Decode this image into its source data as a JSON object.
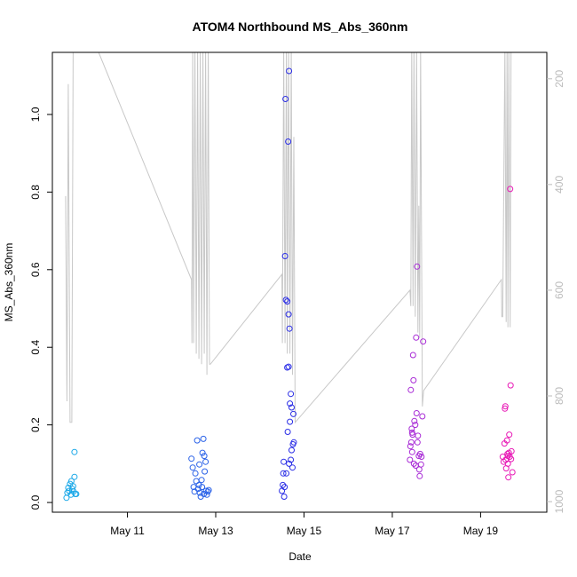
{
  "chart_data": {
    "type": "scatter",
    "title": "ATOM4 Northbound MS_Abs_360nm",
    "xlabel": "Date",
    "ylabel": "MS_Abs_360nm",
    "x_unit": "day of May",
    "xlim": [
      9.3,
      20.5
    ],
    "ylim": [
      -0.025,
      1.16
    ],
    "x_ticks": [
      11,
      13,
      15,
      17,
      19
    ],
    "x_tick_labels": [
      "May 11",
      "May 13",
      "May 15",
      "May 17",
      "May 19"
    ],
    "y_ticks": [
      0.0,
      0.2,
      0.4,
      0.6,
      0.8,
      1.0
    ],
    "y_tick_labels": [
      "0.0",
      "0.2",
      "0.4",
      "0.6",
      "0.8",
      "1.0"
    ],
    "y2_ticks": [
      200,
      400,
      600,
      800,
      1000
    ],
    "y2_tick_labels": [
      "200",
      "400",
      "600",
      "800",
      "1000"
    ],
    "y2_lim": [
      1020,
      150
    ],
    "grid": false,
    "points": [
      {
        "x": 9.62,
        "y": 0.012,
        "color": "#1aa8e8"
      },
      {
        "x": 9.64,
        "y": 0.025,
        "color": "#1aa8e8"
      },
      {
        "x": 9.66,
        "y": 0.038,
        "color": "#1aa8e8"
      },
      {
        "x": 9.68,
        "y": 0.03,
        "color": "#1aa8e8"
      },
      {
        "x": 9.7,
        "y": 0.048,
        "color": "#1aa8e8"
      },
      {
        "x": 9.72,
        "y": 0.02,
        "color": "#1aa8e8"
      },
      {
        "x": 9.73,
        "y": 0.055,
        "color": "#1aa8e8"
      },
      {
        "x": 9.75,
        "y": 0.035,
        "color": "#1aa8e8"
      },
      {
        "x": 9.77,
        "y": 0.042,
        "color": "#1aa8e8"
      },
      {
        "x": 9.78,
        "y": 0.028,
        "color": "#1aa8e8"
      },
      {
        "x": 9.8,
        "y": 0.066,
        "color": "#1aa8e8"
      },
      {
        "x": 9.8,
        "y": 0.13,
        "color": "#1aa8e8"
      },
      {
        "x": 9.82,
        "y": 0.022,
        "color": "#1aa8e8"
      },
      {
        "x": 9.84,
        "y": 0.022,
        "color": "#1aa8e8"
      },
      {
        "x": 12.45,
        "y": 0.113,
        "color": "#2a62e8"
      },
      {
        "x": 12.48,
        "y": 0.09,
        "color": "#2a62e8"
      },
      {
        "x": 12.5,
        "y": 0.04,
        "color": "#2a62e8"
      },
      {
        "x": 12.52,
        "y": 0.028,
        "color": "#2a62e8"
      },
      {
        "x": 12.54,
        "y": 0.075,
        "color": "#2a62e8"
      },
      {
        "x": 12.56,
        "y": 0.055,
        "color": "#2a62e8"
      },
      {
        "x": 12.58,
        "y": 0.16,
        "color": "#2a62e8"
      },
      {
        "x": 12.6,
        "y": 0.035,
        "color": "#2a62e8"
      },
      {
        "x": 12.62,
        "y": 0.045,
        "color": "#2a62e8"
      },
      {
        "x": 12.63,
        "y": 0.098,
        "color": "#2a62e8"
      },
      {
        "x": 12.64,
        "y": 0.025,
        "color": "#2a62e8"
      },
      {
        "x": 12.66,
        "y": 0.015,
        "color": "#2a62e8"
      },
      {
        "x": 12.68,
        "y": 0.058,
        "color": "#2a62e8"
      },
      {
        "x": 12.7,
        "y": 0.128,
        "color": "#2a62e8"
      },
      {
        "x": 12.72,
        "y": 0.164,
        "color": "#2a62e8"
      },
      {
        "x": 12.73,
        "y": 0.022,
        "color": "#2a62e8"
      },
      {
        "x": 12.74,
        "y": 0.12,
        "color": "#2a62e8"
      },
      {
        "x": 12.75,
        "y": 0.08,
        "color": "#2a62e8"
      },
      {
        "x": 12.77,
        "y": 0.105,
        "color": "#2a62e8"
      },
      {
        "x": 12.78,
        "y": 0.03,
        "color": "#2a62e8"
      },
      {
        "x": 12.8,
        "y": 0.02,
        "color": "#2a62e8"
      },
      {
        "x": 12.82,
        "y": 0.028,
        "color": "#2a62e8"
      },
      {
        "x": 12.84,
        "y": 0.032,
        "color": "#2a62e8"
      },
      {
        "x": 12.69,
        "y": 0.04,
        "color": "#2a62e8"
      },
      {
        "x": 14.5,
        "y": 0.03,
        "color": "#2b2ee6"
      },
      {
        "x": 14.52,
        "y": 0.045,
        "color": "#2b2ee6"
      },
      {
        "x": 14.53,
        "y": 0.075,
        "color": "#2b2ee6"
      },
      {
        "x": 14.54,
        "y": 0.105,
        "color": "#2b2ee6"
      },
      {
        "x": 14.55,
        "y": 0.015,
        "color": "#2b2ee6"
      },
      {
        "x": 14.56,
        "y": 0.04,
        "color": "#2b2ee6"
      },
      {
        "x": 14.57,
        "y": 0.635,
        "color": "#2b2ee6"
      },
      {
        "x": 14.58,
        "y": 1.04,
        "color": "#2b2ee6"
      },
      {
        "x": 14.59,
        "y": 0.522,
        "color": "#2b2ee6"
      },
      {
        "x": 14.6,
        "y": 0.075,
        "color": "#2b2ee6"
      },
      {
        "x": 14.62,
        "y": 0.518,
        "color": "#2b2ee6"
      },
      {
        "x": 14.62,
        "y": 0.348,
        "color": "#2b2ee6"
      },
      {
        "x": 14.64,
        "y": 0.93,
        "color": "#2b2ee6"
      },
      {
        "x": 14.65,
        "y": 0.35,
        "color": "#2b2ee6"
      },
      {
        "x": 14.65,
        "y": 0.485,
        "color": "#2b2ee6"
      },
      {
        "x": 14.66,
        "y": 1.112,
        "color": "#2b2ee6"
      },
      {
        "x": 14.67,
        "y": 0.448,
        "color": "#2b2ee6"
      },
      {
        "x": 14.63,
        "y": 0.182,
        "color": "#2b2ee6"
      },
      {
        "x": 14.68,
        "y": 0.255,
        "color": "#2b2ee6"
      },
      {
        "x": 14.68,
        "y": 0.208,
        "color": "#2b2ee6"
      },
      {
        "x": 14.7,
        "y": 0.28,
        "color": "#2b2ee6"
      },
      {
        "x": 14.7,
        "y": 0.11,
        "color": "#2b2ee6"
      },
      {
        "x": 14.72,
        "y": 0.245,
        "color": "#2b2ee6"
      },
      {
        "x": 14.72,
        "y": 0.135,
        "color": "#2b2ee6"
      },
      {
        "x": 14.74,
        "y": 0.09,
        "color": "#2b2ee6"
      },
      {
        "x": 14.75,
        "y": 0.15,
        "color": "#2b2ee6"
      },
      {
        "x": 14.76,
        "y": 0.228,
        "color": "#2b2ee6"
      },
      {
        "x": 14.77,
        "y": 0.155,
        "color": "#2b2ee6"
      },
      {
        "x": 14.66,
        "y": 0.1,
        "color": "#2b2ee6"
      },
      {
        "x": 17.4,
        "y": 0.11,
        "color": "#a82ad6"
      },
      {
        "x": 17.41,
        "y": 0.145,
        "color": "#a82ad6"
      },
      {
        "x": 17.42,
        "y": 0.29,
        "color": "#a82ad6"
      },
      {
        "x": 17.43,
        "y": 0.155,
        "color": "#a82ad6"
      },
      {
        "x": 17.44,
        "y": 0.19,
        "color": "#a82ad6"
      },
      {
        "x": 17.45,
        "y": 0.13,
        "color": "#a82ad6"
      },
      {
        "x": 17.46,
        "y": 0.175,
        "color": "#a82ad6"
      },
      {
        "x": 17.47,
        "y": 0.38,
        "color": "#a82ad6"
      },
      {
        "x": 17.48,
        "y": 0.315,
        "color": "#a82ad6"
      },
      {
        "x": 17.49,
        "y": 0.1,
        "color": "#a82ad6"
      },
      {
        "x": 17.5,
        "y": 0.21,
        "color": "#a82ad6"
      },
      {
        "x": 17.52,
        "y": 0.2,
        "color": "#a82ad6"
      },
      {
        "x": 17.53,
        "y": 0.095,
        "color": "#a82ad6"
      },
      {
        "x": 17.54,
        "y": 0.425,
        "color": "#a82ad6"
      },
      {
        "x": 17.55,
        "y": 0.23,
        "color": "#a82ad6"
      },
      {
        "x": 17.56,
        "y": 0.608,
        "color": "#a82ad6"
      },
      {
        "x": 17.57,
        "y": 0.155,
        "color": "#a82ad6"
      },
      {
        "x": 17.58,
        "y": 0.172,
        "color": "#a82ad6"
      },
      {
        "x": 17.6,
        "y": 0.12,
        "color": "#a82ad6"
      },
      {
        "x": 17.61,
        "y": 0.085,
        "color": "#a82ad6"
      },
      {
        "x": 17.62,
        "y": 0.068,
        "color": "#a82ad6"
      },
      {
        "x": 17.63,
        "y": 0.125,
        "color": "#a82ad6"
      },
      {
        "x": 17.65,
        "y": 0.098,
        "color": "#a82ad6"
      },
      {
        "x": 17.66,
        "y": 0.118,
        "color": "#a82ad6"
      },
      {
        "x": 17.68,
        "y": 0.222,
        "color": "#a82ad6"
      },
      {
        "x": 17.7,
        "y": 0.415,
        "color": "#a82ad6"
      },
      {
        "x": 17.45,
        "y": 0.18,
        "color": "#a82ad6"
      },
      {
        "x": 19.5,
        "y": 0.118,
        "color": "#e81ab6"
      },
      {
        "x": 19.52,
        "y": 0.105,
        "color": "#e81ab6"
      },
      {
        "x": 19.54,
        "y": 0.152,
        "color": "#e81ab6"
      },
      {
        "x": 19.55,
        "y": 0.242,
        "color": "#e81ab6"
      },
      {
        "x": 19.56,
        "y": 0.248,
        "color": "#e81ab6"
      },
      {
        "x": 19.57,
        "y": 0.11,
        "color": "#e81ab6"
      },
      {
        "x": 19.58,
        "y": 0.088,
        "color": "#e81ab6"
      },
      {
        "x": 19.6,
        "y": 0.16,
        "color": "#e81ab6"
      },
      {
        "x": 19.61,
        "y": 0.125,
        "color": "#e81ab6"
      },
      {
        "x": 19.62,
        "y": 0.1,
        "color": "#e81ab6"
      },
      {
        "x": 19.63,
        "y": 0.065,
        "color": "#e81ab6"
      },
      {
        "x": 19.64,
        "y": 0.128,
        "color": "#e81ab6"
      },
      {
        "x": 19.65,
        "y": 0.175,
        "color": "#e81ab6"
      },
      {
        "x": 19.66,
        "y": 0.118,
        "color": "#e81ab6"
      },
      {
        "x": 19.67,
        "y": 0.808,
        "color": "#e81ab6"
      },
      {
        "x": 19.68,
        "y": 0.302,
        "color": "#e81ab6"
      },
      {
        "x": 19.69,
        "y": 0.112,
        "color": "#e81ab6"
      },
      {
        "x": 19.7,
        "y": 0.132,
        "color": "#e81ab6"
      },
      {
        "x": 19.72,
        "y": 0.078,
        "color": "#e81ab6"
      },
      {
        "x": 19.62,
        "y": 0.12,
        "color": "#e81ab6"
      }
    ],
    "gray_line": {
      "color": "#c8c8c8",
      "points": [
        [
          9.6,
          422
        ],
        [
          9.63,
          810
        ],
        [
          9.66,
          210
        ],
        [
          9.7,
          850
        ],
        [
          9.74,
          850
        ],
        [
          9.77,
          140
        ],
        [
          10.3,
          140
        ],
        [
          12.45,
          580
        ],
        [
          12.46,
          700
        ],
        [
          12.48,
          140
        ],
        [
          12.5,
          700
        ],
        [
          12.53,
          140
        ],
        [
          12.56,
          720
        ],
        [
          12.59,
          140
        ],
        [
          12.62,
          730
        ],
        [
          12.65,
          140
        ],
        [
          12.68,
          740
        ],
        [
          12.71,
          140
        ],
        [
          12.74,
          720
        ],
        [
          12.77,
          140
        ],
        [
          12.8,
          760
        ],
        [
          12.83,
          140
        ],
        [
          12.86,
          740
        ],
        [
          12.88,
          740
        ],
        [
          14.5,
          570
        ],
        [
          14.51,
          700
        ],
        [
          14.54,
          140
        ],
        [
          14.57,
          700
        ],
        [
          14.6,
          140
        ],
        [
          14.62,
          720
        ],
        [
          14.65,
          140
        ],
        [
          14.68,
          720
        ],
        [
          14.71,
          140
        ],
        [
          14.74,
          760
        ],
        [
          14.77,
          310
        ],
        [
          14.8,
          850
        ],
        [
          17.4,
          600
        ],
        [
          17.42,
          630
        ],
        [
          17.44,
          140
        ],
        [
          17.47,
          630
        ],
        [
          17.49,
          140
        ],
        [
          17.52,
          650
        ],
        [
          17.55,
          140
        ],
        [
          17.58,
          680
        ],
        [
          17.6,
          440
        ],
        [
          17.62,
          690
        ],
        [
          17.64,
          140
        ],
        [
          17.68,
          820
        ],
        [
          17.71,
          790
        ],
        [
          19.47,
          580
        ],
        [
          19.48,
          650
        ],
        [
          19.5,
          650
        ],
        [
          19.55,
          140
        ],
        [
          19.58,
          660
        ],
        [
          19.6,
          140
        ],
        [
          19.62,
          670
        ],
        [
          19.64,
          140
        ],
        [
          19.67,
          670
        ],
        [
          19.69,
          140
        ]
      ]
    }
  }
}
